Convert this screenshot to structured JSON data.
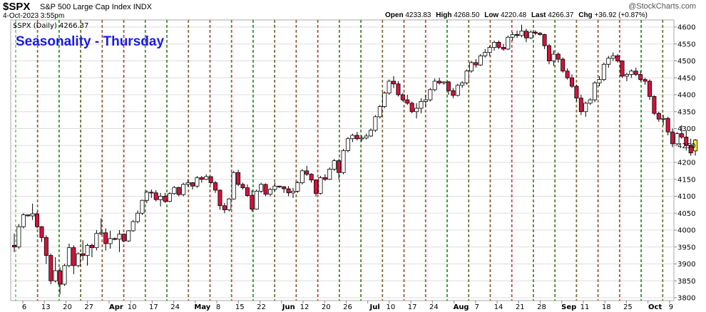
{
  "header": {
    "symbol": "$SPX",
    "name": "S&P 500 Large Cap Index",
    "exchange": "INDX",
    "datetime": "4-Oct-2023 3:55pm",
    "legend": "$SPX (Daily) 4266.37",
    "watermark": "@StockCharts.com",
    "ohlc": {
      "open_label": "Open",
      "open": "4233.83",
      "high_label": "High",
      "high": "4268.50",
      "low_label": "Low",
      "low": "4220.48",
      "last_label": "Last",
      "last": "4266.37",
      "chg_label": "Chg",
      "chg": "+36.92 (+0.87%)"
    }
  },
  "chart_data": {
    "type": "candlestick",
    "title": "Seasonality - Thursday",
    "ylim": [
      3800,
      4600
    ],
    "yticks": [
      3800,
      3850,
      3900,
      3950,
      4000,
      4050,
      4100,
      4150,
      4200,
      4250,
      4300,
      4350,
      4400,
      4450,
      4500,
      4550,
      4600
    ],
    "xticks": [
      {
        "label": "6",
        "bold": false
      },
      {
        "label": "13",
        "bold": false
      },
      {
        "label": "20",
        "bold": false
      },
      {
        "label": "27",
        "bold": false
      },
      {
        "label": "Apr",
        "bold": true
      },
      {
        "label": "10",
        "bold": false
      },
      {
        "label": "17",
        "bold": false
      },
      {
        "label": "24",
        "bold": false
      },
      {
        "label": "May",
        "bold": true
      },
      {
        "label": "8",
        "bold": false
      },
      {
        "label": "15",
        "bold": false
      },
      {
        "label": "22",
        "bold": false
      },
      {
        "label": "Jun",
        "bold": true
      },
      {
        "label": "12",
        "bold": false
      },
      {
        "label": "20",
        "bold": false
      },
      {
        "label": "26",
        "bold": false
      },
      {
        "label": "Jul",
        "bold": true
      },
      {
        "label": "10",
        "bold": false
      },
      {
        "label": "17",
        "bold": false
      },
      {
        "label": "24",
        "bold": false
      },
      {
        "label": "Aug",
        "bold": true
      },
      {
        "label": "7",
        "bold": false
      },
      {
        "label": "14",
        "bold": false
      },
      {
        "label": "21",
        "bold": false
      },
      {
        "label": "28",
        "bold": false
      },
      {
        "label": "Sep",
        "bold": true
      },
      {
        "label": "11",
        "bold": false
      },
      {
        "label": "18",
        "bold": false
      },
      {
        "label": "25",
        "bold": false
      },
      {
        "label": "Oct",
        "bold": true
      },
      {
        "label": "9",
        "bold": false
      }
    ],
    "colors": {
      "up": "#ffffff",
      "down": "#d6123c",
      "outline": "#000000",
      "last": "#ffee55",
      "thursday_line": "#2e9a2e",
      "week_line": "#dd2a3a",
      "grid": "#dddddd",
      "title": "#1a1ae6"
    },
    "candles": [
      [
        3955,
        3990,
        3935,
        3950
      ],
      [
        3950,
        4018,
        3945,
        4010
      ],
      [
        4010,
        4050,
        4005,
        4045
      ],
      [
        4045,
        4045,
        4040,
        4042
      ],
      [
        4042,
        4078,
        4030,
        4048
      ],
      [
        4048,
        4055,
        4005,
        4010
      ],
      [
        4010,
        4012,
        3965,
        3978
      ],
      [
        3978,
        3985,
        3900,
        3925
      ],
      [
        3925,
        3930,
        3840,
        3850
      ],
      [
        3850,
        3920,
        3845,
        3880
      ],
      [
        3880,
        3890,
        3810,
        3840
      ],
      [
        3840,
        3900,
        3835,
        3895
      ],
      [
        3895,
        3960,
        3890,
        3948
      ],
      [
        3948,
        3955,
        3870,
        3895
      ],
      [
        3895,
        3935,
        3890,
        3930
      ],
      [
        3930,
        3970,
        3910,
        3925
      ],
      [
        3925,
        3960,
        3895,
        3955
      ],
      [
        3955,
        3960,
        3920,
        3948
      ],
      [
        3948,
        4000,
        3940,
        3990
      ],
      [
        3990,
        4035,
        3985,
        3992
      ],
      [
        3992,
        4005,
        3940,
        3960
      ],
      [
        3960,
        3998,
        3945,
        3975
      ],
      [
        3975,
        3978,
        3970,
        3973
      ],
      [
        3973,
        4000,
        3935,
        3988
      ],
      [
        3988,
        3990,
        3965,
        3968
      ],
      [
        3968,
        4000,
        3965,
        3998
      ],
      [
        3998,
        4030,
        3995,
        4025
      ],
      [
        4025,
        4058,
        4020,
        4050
      ],
      [
        4050,
        4090,
        4045,
        4088
      ],
      [
        4088,
        4118,
        4080,
        4112
      ],
      [
        4112,
        4120,
        4095,
        4110
      ],
      [
        4110,
        4118,
        4085,
        4090
      ],
      [
        4090,
        4110,
        4070,
        4100
      ],
      [
        4100,
        4110,
        4080,
        4085
      ],
      [
        4085,
        4112,
        4082,
        4108
      ],
      [
        4108,
        4130,
        4104,
        4126
      ],
      [
        4126,
        4128,
        4100,
        4105
      ],
      [
        4105,
        4140,
        4100,
        4135
      ],
      [
        4135,
        4150,
        4128,
        4140
      ],
      [
        4140,
        4142,
        4120,
        4130
      ],
      [
        4130,
        4160,
        4125,
        4155
      ],
      [
        4155,
        4160,
        4140,
        4150
      ],
      [
        4150,
        4165,
        4148,
        4158
      ],
      [
        4158,
        4158,
        4135,
        4140
      ],
      [
        4140,
        4145,
        4110,
        4118
      ],
      [
        4118,
        4120,
        4060,
        4072
      ],
      [
        4072,
        4080,
        4050,
        4060
      ],
      [
        4060,
        4095,
        4055,
        4092
      ],
      [
        4092,
        4175,
        4090,
        4170
      ],
      [
        4170,
        4178,
        4130,
        4135
      ],
      [
        4135,
        4140,
        4120,
        4125
      ],
      [
        4125,
        4135,
        4098,
        4102
      ],
      [
        4102,
        4118,
        4055,
        4062
      ],
      [
        4062,
        4120,
        4060,
        4115
      ],
      [
        4115,
        4140,
        4110,
        4135
      ],
      [
        4135,
        4138,
        4100,
        4106
      ],
      [
        4106,
        4125,
        4100,
        4120
      ],
      [
        4120,
        4140,
        4115,
        4130
      ],
      [
        4130,
        4130,
        4125,
        4128
      ],
      [
        4128,
        4130,
        4110,
        4122
      ],
      [
        4122,
        4130,
        4100,
        4110
      ],
      [
        4110,
        4125,
        4095,
        4115
      ],
      [
        4115,
        4145,
        4110,
        4140
      ],
      [
        4140,
        4180,
        4135,
        4175
      ],
      [
        4175,
        4190,
        4160,
        4165
      ],
      [
        4165,
        4168,
        4140,
        4148
      ],
      [
        4148,
        4150,
        4100,
        4108
      ],
      [
        4108,
        4160,
        4105,
        4155
      ],
      [
        4155,
        4165,
        4145,
        4150
      ],
      [
        4150,
        4185,
        4148,
        4180
      ],
      [
        4180,
        4210,
        4175,
        4205
      ],
      [
        4205,
        4210,
        4150,
        4170
      ],
      [
        4170,
        4240,
        4165,
        4235
      ],
      [
        4235,
        4275,
        4230,
        4270
      ],
      [
        4270,
        4285,
        4260,
        4280
      ],
      [
        4280,
        4290,
        4265,
        4270
      ],
      [
        4270,
        4280,
        4262,
        4272
      ],
      [
        4272,
        4285,
        4268,
        4278
      ],
      [
        4278,
        4300,
        4275,
        4295
      ],
      [
        4295,
        4340,
        4290,
        4335
      ],
      [
        4335,
        4370,
        4330,
        4365
      ],
      [
        4365,
        4410,
        4360,
        4405
      ],
      [
        4405,
        4445,
        4400,
        4440
      ],
      [
        4440,
        4455,
        4420,
        4432
      ],
      [
        4432,
        4440,
        4395,
        4400
      ],
      [
        4400,
        4405,
        4380,
        4385
      ],
      [
        4385,
        4400,
        4370,
        4375
      ],
      [
        4375,
        4380,
        4345,
        4350
      ],
      [
        4350,
        4375,
        4330,
        4360
      ],
      [
        4360,
        4390,
        4345,
        4380
      ],
      [
        4380,
        4400,
        4365,
        4385
      ],
      [
        4385,
        4420,
        4380,
        4415
      ],
      [
        4415,
        4448,
        4410,
        4440
      ],
      [
        4440,
        4450,
        4430,
        4435
      ],
      [
        4435,
        4440,
        4430,
        4438
      ],
      [
        4438,
        4440,
        4400,
        4412
      ],
      [
        4412,
        4420,
        4390,
        4398
      ],
      [
        4398,
        4432,
        4395,
        4428
      ],
      [
        4428,
        4440,
        4420,
        4435
      ],
      [
        4435,
        4475,
        4430,
        4470
      ],
      [
        4470,
        4500,
        4465,
        4495
      ],
      [
        4495,
        4505,
        4480,
        4488
      ],
      [
        4488,
        4520,
        4485,
        4515
      ],
      [
        4515,
        4535,
        4510,
        4525
      ],
      [
        4525,
        4545,
        4515,
        4540
      ],
      [
        4540,
        4560,
        4530,
        4555
      ],
      [
        4555,
        4560,
        4535,
        4540
      ],
      [
        4540,
        4550,
        4530,
        4535
      ],
      [
        4535,
        4575,
        4532,
        4570
      ],
      [
        4570,
        4585,
        4560,
        4578
      ],
      [
        4578,
        4590,
        4568,
        4575
      ],
      [
        4575,
        4607,
        4570,
        4588
      ],
      [
        4588,
        4595,
        4555,
        4568
      ],
      [
        4568,
        4590,
        4565,
        4585
      ],
      [
        4585,
        4590,
        4576,
        4582
      ],
      [
        4582,
        4585,
        4575,
        4578
      ],
      [
        4578,
        4580,
        4535,
        4545
      ],
      [
        4545,
        4550,
        4490,
        4500
      ],
      [
        4500,
        4530,
        4485,
        4520
      ],
      [
        4520,
        4525,
        4495,
        4505
      ],
      [
        4505,
        4510,
        4465,
        4470
      ],
      [
        4470,
        4478,
        4445,
        4450
      ],
      [
        4450,
        4460,
        4420,
        4425
      ],
      [
        4425,
        4430,
        4380,
        4390
      ],
      [
        4390,
        4400,
        4340,
        4350
      ],
      [
        4350,
        4380,
        4335,
        4375
      ],
      [
        4375,
        4390,
        4370,
        4385
      ],
      [
        4385,
        4440,
        4378,
        4435
      ],
      [
        4435,
        4455,
        4425,
        4445
      ],
      [
        4445,
        4495,
        4440,
        4490
      ],
      [
        4490,
        4515,
        4480,
        4508
      ],
      [
        4508,
        4525,
        4500,
        4515
      ],
      [
        4515,
        4520,
        4495,
        4500
      ],
      [
        4500,
        4502,
        4450,
        4455
      ],
      [
        4455,
        4465,
        4440,
        4460
      ],
      [
        4460,
        4475,
        4450,
        4470
      ],
      [
        4470,
        4480,
        4455,
        4460
      ],
      [
        4460,
        4470,
        4440,
        4445
      ],
      [
        4445,
        4450,
        4430,
        4440
      ],
      [
        4440,
        4445,
        4385,
        4395
      ],
      [
        4395,
        4398,
        4340,
        4345
      ],
      [
        4345,
        4350,
        4320,
        4328
      ],
      [
        4328,
        4340,
        4310,
        4330
      ],
      [
        4330,
        4335,
        4280,
        4290
      ],
      [
        4290,
        4300,
        4245,
        4255
      ],
      [
        4255,
        4290,
        4250,
        4285
      ],
      [
        4285,
        4310,
        4270,
        4275
      ],
      [
        4275,
        4295,
        4235,
        4250
      ],
      [
        4250,
        4270,
        4220,
        4228
      ],
      [
        4234,
        4269,
        4220,
        4266
      ]
    ]
  }
}
